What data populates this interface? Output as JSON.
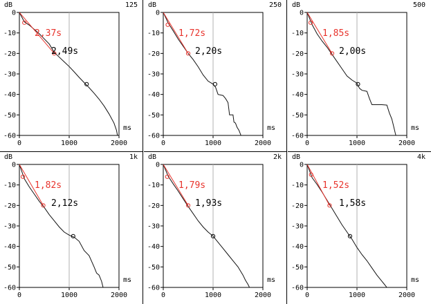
{
  "chart_data": [
    {
      "type": "line",
      "band": "125",
      "y_unit": "dB",
      "x_unit": "ms",
      "xlim": [
        0,
        2000
      ],
      "ylim": [
        -60,
        0
      ],
      "x_ticks": [
        "0",
        "1000",
        "2000"
      ],
      "y_ticks": [
        "0",
        "-10",
        "-20",
        "-30",
        "-40",
        "-50",
        "-60"
      ],
      "grid": "single vertical line at 1000",
      "annotations": {
        "edt": "2,37s",
        "t30": "2,49s"
      },
      "edt_markers": [
        [
          100,
          -5
        ],
        [
          700,
          -20
        ]
      ],
      "t30_markers": [
        [
          1350,
          -35
        ]
      ],
      "series": [
        {
          "points": [
            [
              0,
              0
            ],
            [
              100,
              -4.6
            ],
            [
              200,
              -6.2
            ],
            [
              300,
              -8.3
            ],
            [
              400,
              -10.4
            ],
            [
              500,
              -12.9
            ],
            [
              600,
              -15.4
            ],
            [
              700,
              -19.5
            ],
            [
              800,
              -21.8
            ],
            [
              900,
              -24.1
            ],
            [
              1000,
              -26.4
            ],
            [
              1100,
              -29
            ],
            [
              1200,
              -31.7
            ],
            [
              1300,
              -34.2
            ],
            [
              1400,
              -36.7
            ],
            [
              1500,
              -39.4
            ],
            [
              1600,
              -42.3
            ],
            [
              1700,
              -45.6
            ],
            [
              1800,
              -49.5
            ],
            [
              1900,
              -54
            ],
            [
              1950,
              -57.5
            ],
            [
              1970,
              -60
            ]
          ]
        }
      ]
    },
    {
      "type": "line",
      "band": "250",
      "y_unit": "dB",
      "x_unit": "ms",
      "xlim": [
        0,
        2000
      ],
      "ylim": [
        -60,
        0
      ],
      "x_ticks": [
        "0",
        "1000",
        "2000"
      ],
      "y_ticks": [
        "0",
        "-10",
        "-20",
        "-30",
        "-40",
        "-50",
        "-60"
      ],
      "grid": "single vertical line at 1000",
      "annotations": {
        "edt": "1,72s",
        "t30": "2,20s"
      },
      "edt_markers": [
        [
          90,
          -6
        ],
        [
          500,
          -20
        ]
      ],
      "t30_markers": [
        [
          1040,
          -35
        ]
      ],
      "series": [
        {
          "points": [
            [
              0,
              0
            ],
            [
              100,
              -5.2
            ],
            [
              200,
              -9
            ],
            [
              300,
              -13
            ],
            [
              400,
              -16.5
            ],
            [
              500,
              -20
            ],
            [
              600,
              -23
            ],
            [
              700,
              -26.5
            ],
            [
              800,
              -30.5
            ],
            [
              900,
              -33.5
            ],
            [
              1000,
              -35
            ],
            [
              1050,
              -36.5
            ],
            [
              1100,
              -40
            ],
            [
              1200,
              -40.5
            ],
            [
              1250,
              -42
            ],
            [
              1300,
              -44
            ],
            [
              1330,
              -50
            ],
            [
              1400,
              -50
            ],
            [
              1420,
              -53.5
            ],
            [
              1450,
              -54
            ],
            [
              1480,
              -56
            ],
            [
              1520,
              -57.5
            ],
            [
              1560,
              -60
            ]
          ]
        }
      ]
    },
    {
      "type": "line",
      "band": "500",
      "y_unit": "dB",
      "x_unit": "ms",
      "xlim": [
        0,
        2000
      ],
      "ylim": [
        -60,
        0
      ],
      "x_ticks": [
        "0",
        "1000",
        "2000"
      ],
      "y_ticks": [
        "0",
        "-10",
        "-20",
        "-30",
        "-40",
        "-50",
        "-60"
      ],
      "grid": "single vertical line at 1000",
      "annotations": {
        "edt": "1,85s",
        "t30": "2,00s"
      },
      "edt_markers": [
        [
          70,
          -5
        ],
        [
          500,
          -20
        ]
      ],
      "t30_markers": [
        [
          1020,
          -35
        ]
      ],
      "series": [
        {
          "points": [
            [
              0,
              0
            ],
            [
              100,
              -6
            ],
            [
              200,
              -10.5
            ],
            [
              300,
              -14
            ],
            [
              400,
              -17
            ],
            [
              500,
              -20.5
            ],
            [
              600,
              -24
            ],
            [
              700,
              -27.5
            ],
            [
              800,
              -31
            ],
            [
              900,
              -33
            ],
            [
              1000,
              -34.5
            ],
            [
              1050,
              -37
            ],
            [
              1100,
              -38
            ],
            [
              1200,
              -38.5
            ],
            [
              1250,
              -42
            ],
            [
              1300,
              -45
            ],
            [
              1400,
              -45
            ],
            [
              1500,
              -45
            ],
            [
              1600,
              -45.2
            ],
            [
              1650,
              -49
            ],
            [
              1700,
              -52
            ],
            [
              1740,
              -56
            ],
            [
              1770,
              -59
            ],
            [
              1780,
              -60
            ]
          ]
        }
      ]
    },
    {
      "type": "line",
      "band": "1k",
      "y_unit": "dB",
      "x_unit": "ms",
      "xlim": [
        0,
        2000
      ],
      "ylim": [
        -60,
        0
      ],
      "x_ticks": [
        "0",
        "1000",
        "2000"
      ],
      "y_ticks": [
        "0",
        "-10",
        "-20",
        "-30",
        "-40",
        "-50",
        "-60"
      ],
      "grid": "single vertical line at 1000",
      "annotations": {
        "edt": "1,82s",
        "t30": "2,12s"
      },
      "edt_markers": [
        [
          70,
          -6
        ],
        [
          480,
          -20
        ]
      ],
      "t30_markers": [
        [
          1080,
          -35
        ]
      ],
      "series": [
        {
          "points": [
            [
              0,
              0
            ],
            [
              100,
              -7
            ],
            [
              200,
              -11
            ],
            [
              300,
              -14.5
            ],
            [
              400,
              -18
            ],
            [
              500,
              -21
            ],
            [
              600,
              -24.5
            ],
            [
              700,
              -27.5
            ],
            [
              800,
              -30.5
            ],
            [
              900,
              -33
            ],
            [
              1000,
              -34.5
            ],
            [
              1100,
              -35.5
            ],
            [
              1200,
              -37.5
            ],
            [
              1300,
              -42
            ],
            [
              1400,
              -44.5
            ],
            [
              1500,
              -50
            ],
            [
              1550,
              -53
            ],
            [
              1600,
              -54
            ],
            [
              1650,
              -57
            ],
            [
              1680,
              -60
            ]
          ]
        }
      ]
    },
    {
      "type": "line",
      "band": "2k",
      "y_unit": "dB",
      "x_unit": "ms",
      "xlim": [
        0,
        2000
      ],
      "ylim": [
        -60,
        0
      ],
      "x_ticks": [
        "0",
        "1000",
        "2000"
      ],
      "y_ticks": [
        "0",
        "-10",
        "-20",
        "-30",
        "-40",
        "-50",
        "-60"
      ],
      "grid": "single vertical line at 1000",
      "annotations": {
        "edt": "1,79s",
        "t30": "1,93s"
      },
      "edt_markers": [
        [
          80,
          -6
        ],
        [
          500,
          -20
        ]
      ],
      "t30_markers": [
        [
          1000,
          -35
        ]
      ],
      "series": [
        {
          "points": [
            [
              0,
              0
            ],
            [
              100,
              -5.8
            ],
            [
              200,
              -9.5
            ],
            [
              300,
              -13
            ],
            [
              400,
              -16.8
            ],
            [
              500,
              -20.5
            ],
            [
              600,
              -24
            ],
            [
              700,
              -27.5
            ],
            [
              800,
              -30.5
            ],
            [
              900,
              -33
            ],
            [
              1000,
              -35
            ],
            [
              1100,
              -38
            ],
            [
              1200,
              -41
            ],
            [
              1300,
              -44
            ],
            [
              1400,
              -47
            ],
            [
              1500,
              -50
            ],
            [
              1600,
              -54
            ],
            [
              1650,
              -56.5
            ],
            [
              1700,
              -58.5
            ],
            [
              1730,
              -60
            ]
          ]
        }
      ]
    },
    {
      "type": "line",
      "band": "4k",
      "y_unit": "dB",
      "x_unit": "ms",
      "xlim": [
        0,
        2000
      ],
      "ylim": [
        -60,
        0
      ],
      "x_ticks": [
        "0",
        "1000",
        "2000"
      ],
      "y_ticks": [
        "0",
        "-10",
        "-20",
        "-30",
        "-40",
        "-50",
        "-60"
      ],
      "grid": "single vertical line at 1000",
      "annotations": {
        "edt": "1,52s",
        "t30": "1,58s"
      },
      "edt_markers": [
        [
          80,
          -5
        ],
        [
          450,
          -20
        ]
      ],
      "t30_markers": [
        [
          860,
          -35
        ]
      ],
      "series": [
        {
          "points": [
            [
              0,
              0
            ],
            [
              100,
              -6.5
            ],
            [
              200,
              -9.8
            ],
            [
              300,
              -13.5
            ],
            [
              400,
              -17.5
            ],
            [
              500,
              -21.5
            ],
            [
              600,
              -25.5
            ],
            [
              700,
              -29.5
            ],
            [
              800,
              -33
            ],
            [
              900,
              -36.5
            ],
            [
              1000,
              -40.5
            ],
            [
              1100,
              -44
            ],
            [
              1200,
              -47
            ],
            [
              1300,
              -50.5
            ],
            [
              1400,
              -54
            ],
            [
              1500,
              -57
            ],
            [
              1550,
              -58.5
            ],
            [
              1600,
              -60
            ]
          ]
        }
      ]
    }
  ]
}
